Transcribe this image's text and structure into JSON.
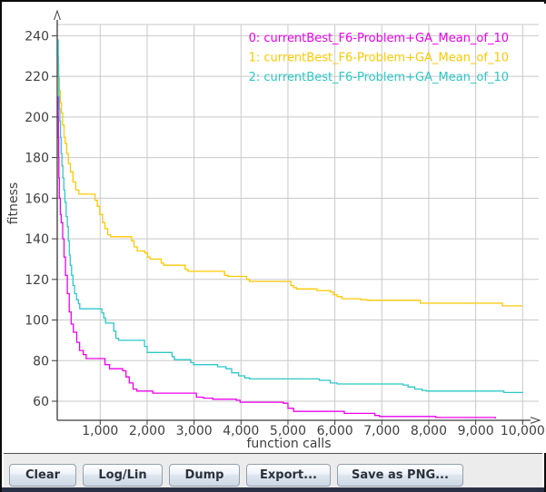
{
  "chart_data": {
    "type": "line",
    "title": "",
    "xlabel": "function calls",
    "ylabel": "fitness",
    "x_ticks": [
      1000,
      2000,
      3000,
      4000,
      5000,
      6000,
      7000,
      8000,
      9000,
      10000
    ],
    "y_ticks": [
      60,
      80,
      100,
      120,
      140,
      160,
      180,
      200,
      220,
      240
    ],
    "xlim": [
      0,
      10000
    ],
    "ylim": [
      51,
      246
    ],
    "grid": true,
    "legend_position": "top-right",
    "line_style": "step-after",
    "series": [
      {
        "name": "0: currentBest_F6-Problem+GA_Mean_of_10",
        "color": "#EE00EE",
        "points": [
          [
            100,
            210
          ],
          [
            105,
            200
          ],
          [
            110,
            190
          ],
          [
            115,
            180
          ],
          [
            120,
            170
          ],
          [
            130,
            160
          ],
          [
            150,
            152
          ],
          [
            170,
            148
          ],
          [
            200,
            140
          ],
          [
            230,
            131
          ],
          [
            260,
            122
          ],
          [
            300,
            113
          ],
          [
            340,
            104
          ],
          [
            380,
            98
          ],
          [
            430,
            94
          ],
          [
            500,
            89
          ],
          [
            560,
            85
          ],
          [
            640,
            83
          ],
          [
            700,
            81
          ],
          [
            1050,
            81
          ],
          [
            1100,
            78
          ],
          [
            1200,
            76
          ],
          [
            1480,
            75
          ],
          [
            1550,
            72
          ],
          [
            1620,
            69
          ],
          [
            1700,
            66
          ],
          [
            1780,
            65
          ],
          [
            2050,
            65
          ],
          [
            2120,
            64
          ],
          [
            2950,
            64
          ],
          [
            3050,
            62
          ],
          [
            3200,
            61.5
          ],
          [
            3400,
            61
          ],
          [
            3900,
            60.5
          ],
          [
            3980,
            59.5
          ],
          [
            4900,
            59
          ],
          [
            5000,
            56.5
          ],
          [
            5120,
            55
          ],
          [
            6100,
            55
          ],
          [
            6200,
            54
          ],
          [
            6750,
            54
          ],
          [
            6850,
            53
          ],
          [
            6950,
            52.5
          ],
          [
            8050,
            52.5
          ],
          [
            8150,
            52
          ],
          [
            9350,
            52
          ],
          [
            9420,
            51.5
          ]
        ]
      },
      {
        "name": "1: currentBest_F6-Problem+GA_Mean_of_10",
        "color": "#FFC800",
        "points": [
          [
            100,
            226
          ],
          [
            115,
            219
          ],
          [
            130,
            213
          ],
          [
            150,
            207
          ],
          [
            175,
            202
          ],
          [
            200,
            196
          ],
          [
            230,
            190
          ],
          [
            255,
            187
          ],
          [
            285,
            182
          ],
          [
            320,
            177
          ],
          [
            365,
            173
          ],
          [
            420,
            168
          ],
          [
            480,
            164
          ],
          [
            545,
            162
          ],
          [
            840,
            162
          ],
          [
            890,
            159
          ],
          [
            940,
            156
          ],
          [
            990,
            152
          ],
          [
            1050,
            148
          ],
          [
            1100,
            145
          ],
          [
            1160,
            142
          ],
          [
            1220,
            141
          ],
          [
            1620,
            141
          ],
          [
            1670,
            139
          ],
          [
            1720,
            136
          ],
          [
            1790,
            134
          ],
          [
            1950,
            133
          ],
          [
            2010,
            131
          ],
          [
            2060,
            130
          ],
          [
            2250,
            130
          ],
          [
            2300,
            128
          ],
          [
            2350,
            127
          ],
          [
            2750,
            127
          ],
          [
            2810,
            125
          ],
          [
            2870,
            124
          ],
          [
            3550,
            124
          ],
          [
            3650,
            122
          ],
          [
            3720,
            121.5
          ],
          [
            4050,
            121.5
          ],
          [
            4120,
            120
          ],
          [
            4180,
            119
          ],
          [
            5000,
            119
          ],
          [
            5060,
            117
          ],
          [
            5120,
            116
          ],
          [
            5180,
            115.3
          ],
          [
            5550,
            115.3
          ],
          [
            5620,
            114.5
          ],
          [
            5900,
            113.8
          ],
          [
            5970,
            112.5
          ],
          [
            6050,
            111.5
          ],
          [
            6150,
            110.5
          ],
          [
            6480,
            110.5
          ],
          [
            6550,
            110
          ],
          [
            6700,
            109.7
          ],
          [
            7750,
            109.7
          ],
          [
            7820,
            108.3
          ],
          [
            9500,
            108.3
          ],
          [
            9570,
            107
          ],
          [
            10000,
            107
          ]
        ]
      },
      {
        "name": "2: currentBest_F6-Problem+GA_Mean_of_10",
        "color": "#2EC8C8",
        "points": [
          [
            100,
            238
          ],
          [
            105,
            230
          ],
          [
            112,
            220
          ],
          [
            120,
            210
          ],
          [
            130,
            204
          ],
          [
            140,
            198
          ],
          [
            155,
            190
          ],
          [
            168,
            182
          ],
          [
            185,
            176
          ],
          [
            205,
            170
          ],
          [
            225,
            164
          ],
          [
            248,
            158
          ],
          [
            275,
            151
          ],
          [
            300,
            146
          ],
          [
            320,
            139
          ],
          [
            342,
            132
          ],
          [
            362,
            127
          ],
          [
            390,
            122
          ],
          [
            420,
            117
          ],
          [
            455,
            113
          ],
          [
            495,
            110
          ],
          [
            535,
            108
          ],
          [
            565,
            105.5
          ],
          [
            990,
            105.5
          ],
          [
            1035,
            103.5
          ],
          [
            1075,
            101
          ],
          [
            1115,
            98.5
          ],
          [
            1240,
            98.5
          ],
          [
            1290,
            94.5
          ],
          [
            1335,
            91
          ],
          [
            1390,
            90
          ],
          [
            1890,
            90
          ],
          [
            1945,
            87
          ],
          [
            2000,
            84
          ],
          [
            2480,
            84
          ],
          [
            2530,
            82
          ],
          [
            2580,
            80.5
          ],
          [
            2880,
            80.5
          ],
          [
            2930,
            79
          ],
          [
            2990,
            78
          ],
          [
            3350,
            78
          ],
          [
            3500,
            77
          ],
          [
            3680,
            76
          ],
          [
            3800,
            74
          ],
          [
            3950,
            72.5
          ],
          [
            4080,
            71.5
          ],
          [
            4180,
            71
          ],
          [
            5600,
            71
          ],
          [
            5670,
            70.3
          ],
          [
            5830,
            70.3
          ],
          [
            5900,
            69
          ],
          [
            6050,
            68.5
          ],
          [
            7380,
            68.5
          ],
          [
            7450,
            68
          ],
          [
            7560,
            67
          ],
          [
            7700,
            66
          ],
          [
            7860,
            65.3
          ],
          [
            7950,
            65
          ],
          [
            9530,
            65
          ],
          [
            9600,
            64.3
          ],
          [
            10000,
            64
          ]
        ]
      }
    ],
    "colors": {
      "grid": "#c9c9c9",
      "axis": "#3a3a3a",
      "tick_label": "#3f3f3f"
    }
  },
  "toolbar": {
    "buttons": [
      {
        "label": "Clear"
      },
      {
        "label": "Log/Lin"
      },
      {
        "label": "Dump"
      },
      {
        "label": "Export..."
      },
      {
        "label": "Save as PNG..."
      }
    ]
  }
}
